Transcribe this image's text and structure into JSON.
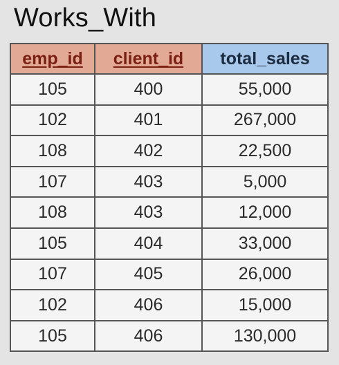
{
  "table_title": "Works_With",
  "columns": [
    "emp_id",
    "client_id",
    "total_sales"
  ],
  "rows": [
    [
      "105",
      "400",
      "55,000"
    ],
    [
      "102",
      "401",
      "267,000"
    ],
    [
      "108",
      "402",
      "22,500"
    ],
    [
      "107",
      "403",
      "5,000"
    ],
    [
      "108",
      "403",
      "12,000"
    ],
    [
      "105",
      "404",
      "33,000"
    ],
    [
      "107",
      "405",
      "26,000"
    ],
    [
      "102",
      "406",
      "15,000"
    ],
    [
      "105",
      "406",
      "130,000"
    ]
  ],
  "colors": {
    "key_header_bg": "#e2a994",
    "key_header_text": "#7a1f12",
    "attribute_header_bg": "#a8c8ec",
    "background": "#e4e4e4"
  }
}
